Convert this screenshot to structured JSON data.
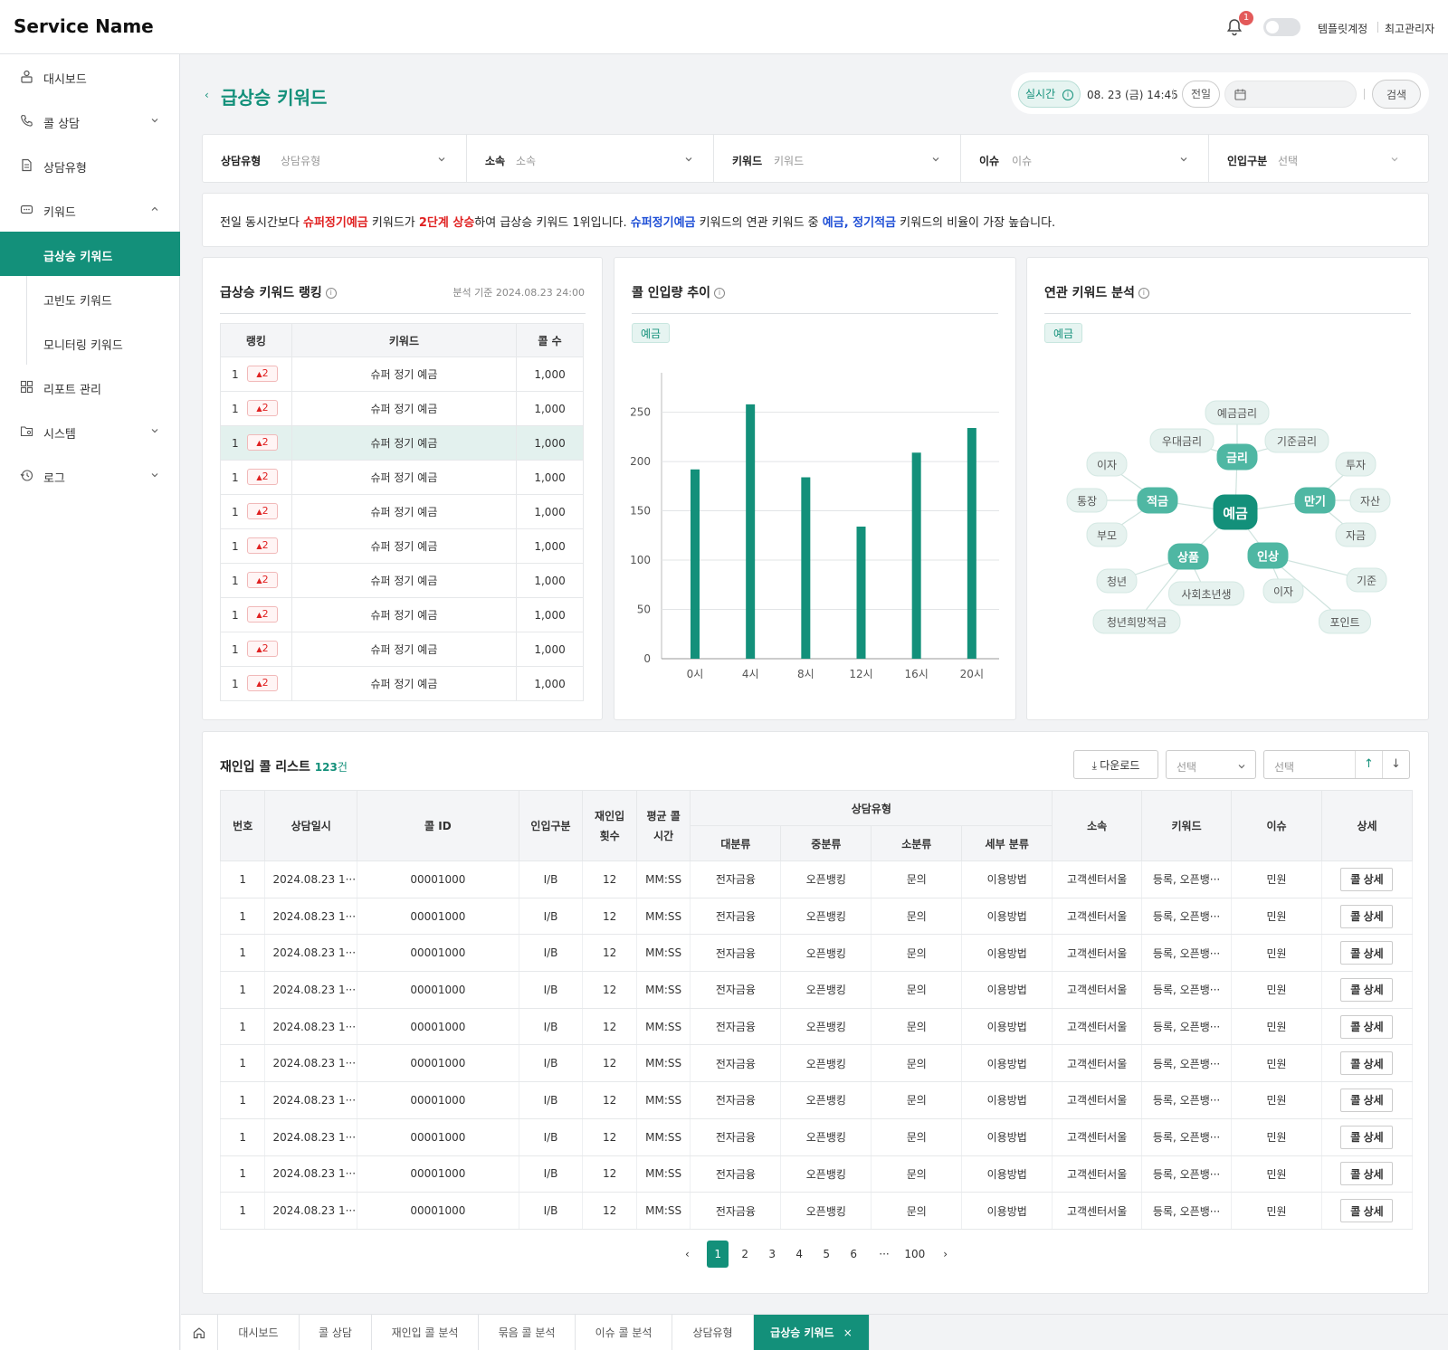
{
  "app": {
    "name": "Service Name",
    "notification_count": "1",
    "account": "템플릿계정",
    "role": "최고관리자"
  },
  "sidebar": {
    "items": [
      {
        "label": "대시보드"
      },
      {
        "label": "콜 상담"
      },
      {
        "label": "상담유형"
      },
      {
        "label": "키워드"
      },
      {
        "label": "급상승 키워드"
      },
      {
        "label": "고빈도 키워드"
      },
      {
        "label": "모니터링 키워드"
      },
      {
        "label": "리포트 관리"
      },
      {
        "label": "시스템"
      },
      {
        "label": "로그"
      }
    ],
    "active": "급상승 키워드"
  },
  "page": {
    "title": "급상승 키워드"
  },
  "search": {
    "realtime_label": "실시간",
    "datetime": "08. 23 (금) 14:45",
    "prev_day": "전일",
    "search_button": "검색"
  },
  "filters": [
    {
      "label": "상담유형",
      "value": "상담유형"
    },
    {
      "label": "소속",
      "value": "소속"
    },
    {
      "label": "키워드",
      "value": "키워드"
    },
    {
      "label": "이슈",
      "value": "이슈"
    },
    {
      "label": "인입구분",
      "value": "선택"
    }
  ],
  "summary": {
    "p1": "전일 동시간보다 ",
    "k1": "슈퍼정기예금",
    "p2": " 키워드가 ",
    "k2": "2단계 상승",
    "p3": "하여 급상승 키워드 1위입니다. ",
    "k3": "슈퍼정기예금",
    "p4": " 키워드의 연관 키워드 중 ",
    "k4": "예금, 정기적금",
    "p5": " 키워드의 비율이 가장 높습니다."
  },
  "ranking": {
    "title": "급상승 키워드 랭킹",
    "basis": "분석 기준 2024.08.23 24:00",
    "columns": [
      "랭킹",
      "키워드",
      "콜 수"
    ],
    "change_symbol": "▲",
    "rows": [
      {
        "rank": "1",
        "change": "2",
        "keyword": "슈퍼 정기 예금",
        "count": "1,000"
      },
      {
        "rank": "1",
        "change": "2",
        "keyword": "슈퍼 정기 예금",
        "count": "1,000"
      },
      {
        "rank": "1",
        "change": "2",
        "keyword": "슈퍼 정기 예금",
        "count": "1,000"
      },
      {
        "rank": "1",
        "change": "2",
        "keyword": "슈퍼 정기 예금",
        "count": "1,000"
      },
      {
        "rank": "1",
        "change": "2",
        "keyword": "슈퍼 정기 예금",
        "count": "1,000"
      },
      {
        "rank": "1",
        "change": "2",
        "keyword": "슈퍼 정기 예금",
        "count": "1,000"
      },
      {
        "rank": "1",
        "change": "2",
        "keyword": "슈퍼 정기 예금",
        "count": "1,000"
      },
      {
        "rank": "1",
        "change": "2",
        "keyword": "슈퍼 정기 예금",
        "count": "1,000"
      },
      {
        "rank": "1",
        "change": "2",
        "keyword": "슈퍼 정기 예금",
        "count": "1,000"
      },
      {
        "rank": "1",
        "change": "2",
        "keyword": "슈퍼 정기 예금",
        "count": "1,000"
      }
    ],
    "selected_row": 2
  },
  "trend": {
    "title": "콜 인입량 추이",
    "tag": "예금"
  },
  "chart_data": {
    "type": "bar",
    "categories": [
      "0시",
      "4시",
      "8시",
      "12시",
      "16시",
      "20시"
    ],
    "values": [
      192,
      258,
      184,
      134,
      209,
      234
    ],
    "ylim": [
      0,
      290
    ],
    "yticks": [
      0,
      50,
      100,
      150,
      200,
      250
    ],
    "grid": true,
    "color": "#13907a"
  },
  "related": {
    "title": "연관 키워드 분석",
    "tag": "예금",
    "center": "예금",
    "primary": [
      "금리",
      "적금",
      "만기",
      "상품",
      "인상"
    ],
    "secondary": [
      "예금금리",
      "우대금리",
      "기준금리",
      "이자",
      "통장",
      "부모",
      "투자",
      "자산",
      "자금",
      "청년",
      "사회초년생",
      "청년희망적금",
      "이자",
      "기준",
      "포인트"
    ]
  },
  "reentry": {
    "title": "재인입 콜 리스트",
    "count": "123",
    "count_unit": "건",
    "download": "다운로드",
    "select1": "선택",
    "select2": "선택",
    "up": "↑",
    "down": "↓",
    "headers": {
      "no": "번호",
      "datetime": "상담일시",
      "call_id": "콜 ID",
      "inbound": "인입구분",
      "reentry_1": "재인입",
      "reentry_2": "횟수",
      "avg_1": "평균 콜",
      "avg_2": "시간",
      "type_group": "상담유형",
      "major": "대분류",
      "middle": "중분류",
      "minor": "소분류",
      "detail": "세부 분류",
      "dept": "소속",
      "keyword": "키워드",
      "issue": "이슈",
      "more": "상세"
    },
    "rows": [
      {
        "no": "1",
        "datetime": "2024.08.23 1···",
        "call_id": "00001000",
        "inbound": "I/B",
        "reentry": "12",
        "avg": "MM:SS",
        "major": "전자금융",
        "middle": "오픈뱅킹",
        "minor": "문의",
        "detail": "이용방법",
        "dept": "고객센터서울",
        "keyword": "등록, 오픈뱅···",
        "issue": "민원",
        "action": "콜 상세"
      },
      {
        "no": "1",
        "datetime": "2024.08.23 1···",
        "call_id": "00001000",
        "inbound": "I/B",
        "reentry": "12",
        "avg": "MM:SS",
        "major": "전자금융",
        "middle": "오픈뱅킹",
        "minor": "문의",
        "detail": "이용방법",
        "dept": "고객센터서울",
        "keyword": "등록, 오픈뱅···",
        "issue": "민원",
        "action": "콜 상세"
      },
      {
        "no": "1",
        "datetime": "2024.08.23 1···",
        "call_id": "00001000",
        "inbound": "I/B",
        "reentry": "12",
        "avg": "MM:SS",
        "major": "전자금융",
        "middle": "오픈뱅킹",
        "minor": "문의",
        "detail": "이용방법",
        "dept": "고객센터서울",
        "keyword": "등록, 오픈뱅···",
        "issue": "민원",
        "action": "콜 상세"
      },
      {
        "no": "1",
        "datetime": "2024.08.23 1···",
        "call_id": "00001000",
        "inbound": "I/B",
        "reentry": "12",
        "avg": "MM:SS",
        "major": "전자금융",
        "middle": "오픈뱅킹",
        "minor": "문의",
        "detail": "이용방법",
        "dept": "고객센터서울",
        "keyword": "등록, 오픈뱅···",
        "issue": "민원",
        "action": "콜 상세"
      },
      {
        "no": "1",
        "datetime": "2024.08.23 1···",
        "call_id": "00001000",
        "inbound": "I/B",
        "reentry": "12",
        "avg": "MM:SS",
        "major": "전자금융",
        "middle": "오픈뱅킹",
        "minor": "문의",
        "detail": "이용방법",
        "dept": "고객센터서울",
        "keyword": "등록, 오픈뱅···",
        "issue": "민원",
        "action": "콜 상세"
      },
      {
        "no": "1",
        "datetime": "2024.08.23 1···",
        "call_id": "00001000",
        "inbound": "I/B",
        "reentry": "12",
        "avg": "MM:SS",
        "major": "전자금융",
        "middle": "오픈뱅킹",
        "minor": "문의",
        "detail": "이용방법",
        "dept": "고객센터서울",
        "keyword": "등록, 오픈뱅···",
        "issue": "민원",
        "action": "콜 상세"
      },
      {
        "no": "1",
        "datetime": "2024.08.23 1···",
        "call_id": "00001000",
        "inbound": "I/B",
        "reentry": "12",
        "avg": "MM:SS",
        "major": "전자금융",
        "middle": "오픈뱅킹",
        "minor": "문의",
        "detail": "이용방법",
        "dept": "고객센터서울",
        "keyword": "등록, 오픈뱅···",
        "issue": "민원",
        "action": "콜 상세"
      },
      {
        "no": "1",
        "datetime": "2024.08.23 1···",
        "call_id": "00001000",
        "inbound": "I/B",
        "reentry": "12",
        "avg": "MM:SS",
        "major": "전자금융",
        "middle": "오픈뱅킹",
        "minor": "문의",
        "detail": "이용방법",
        "dept": "고객센터서울",
        "keyword": "등록, 오픈뱅···",
        "issue": "민원",
        "action": "콜 상세"
      },
      {
        "no": "1",
        "datetime": "2024.08.23 1···",
        "call_id": "00001000",
        "inbound": "I/B",
        "reentry": "12",
        "avg": "MM:SS",
        "major": "전자금융",
        "middle": "오픈뱅킹",
        "minor": "문의",
        "detail": "이용방법",
        "dept": "고객센터서울",
        "keyword": "등록, 오픈뱅···",
        "issue": "민원",
        "action": "콜 상세"
      },
      {
        "no": "1",
        "datetime": "2024.08.23 1···",
        "call_id": "00001000",
        "inbound": "I/B",
        "reentry": "12",
        "avg": "MM:SS",
        "major": "전자금융",
        "middle": "오픈뱅킹",
        "minor": "문의",
        "detail": "이용방법",
        "dept": "고객센터서울",
        "keyword": "등록, 오픈뱅···",
        "issue": "민원",
        "action": "콜 상세"
      }
    ]
  },
  "pagination": {
    "prev": "‹",
    "pages": [
      "1",
      "2",
      "3",
      "4",
      "5",
      "6"
    ],
    "current": "1",
    "ellipsis": "···",
    "last": "100",
    "next": "›"
  },
  "bottom_tabs": {
    "home_icon": "home-icon",
    "tabs": [
      "대시보드",
      "콜 상담",
      "재인입 콜 분석",
      "묶음 콜 분석",
      "이슈 콜 분석",
      "상담유형",
      "급상승 키워드"
    ],
    "active": "급상승 키워드",
    "close": "×"
  },
  "colors": {
    "accent": "#13907a",
    "highlight_red": "#e02121",
    "highlight_blue": "#1f4fd6",
    "selected_row": "#e3f1ee"
  }
}
